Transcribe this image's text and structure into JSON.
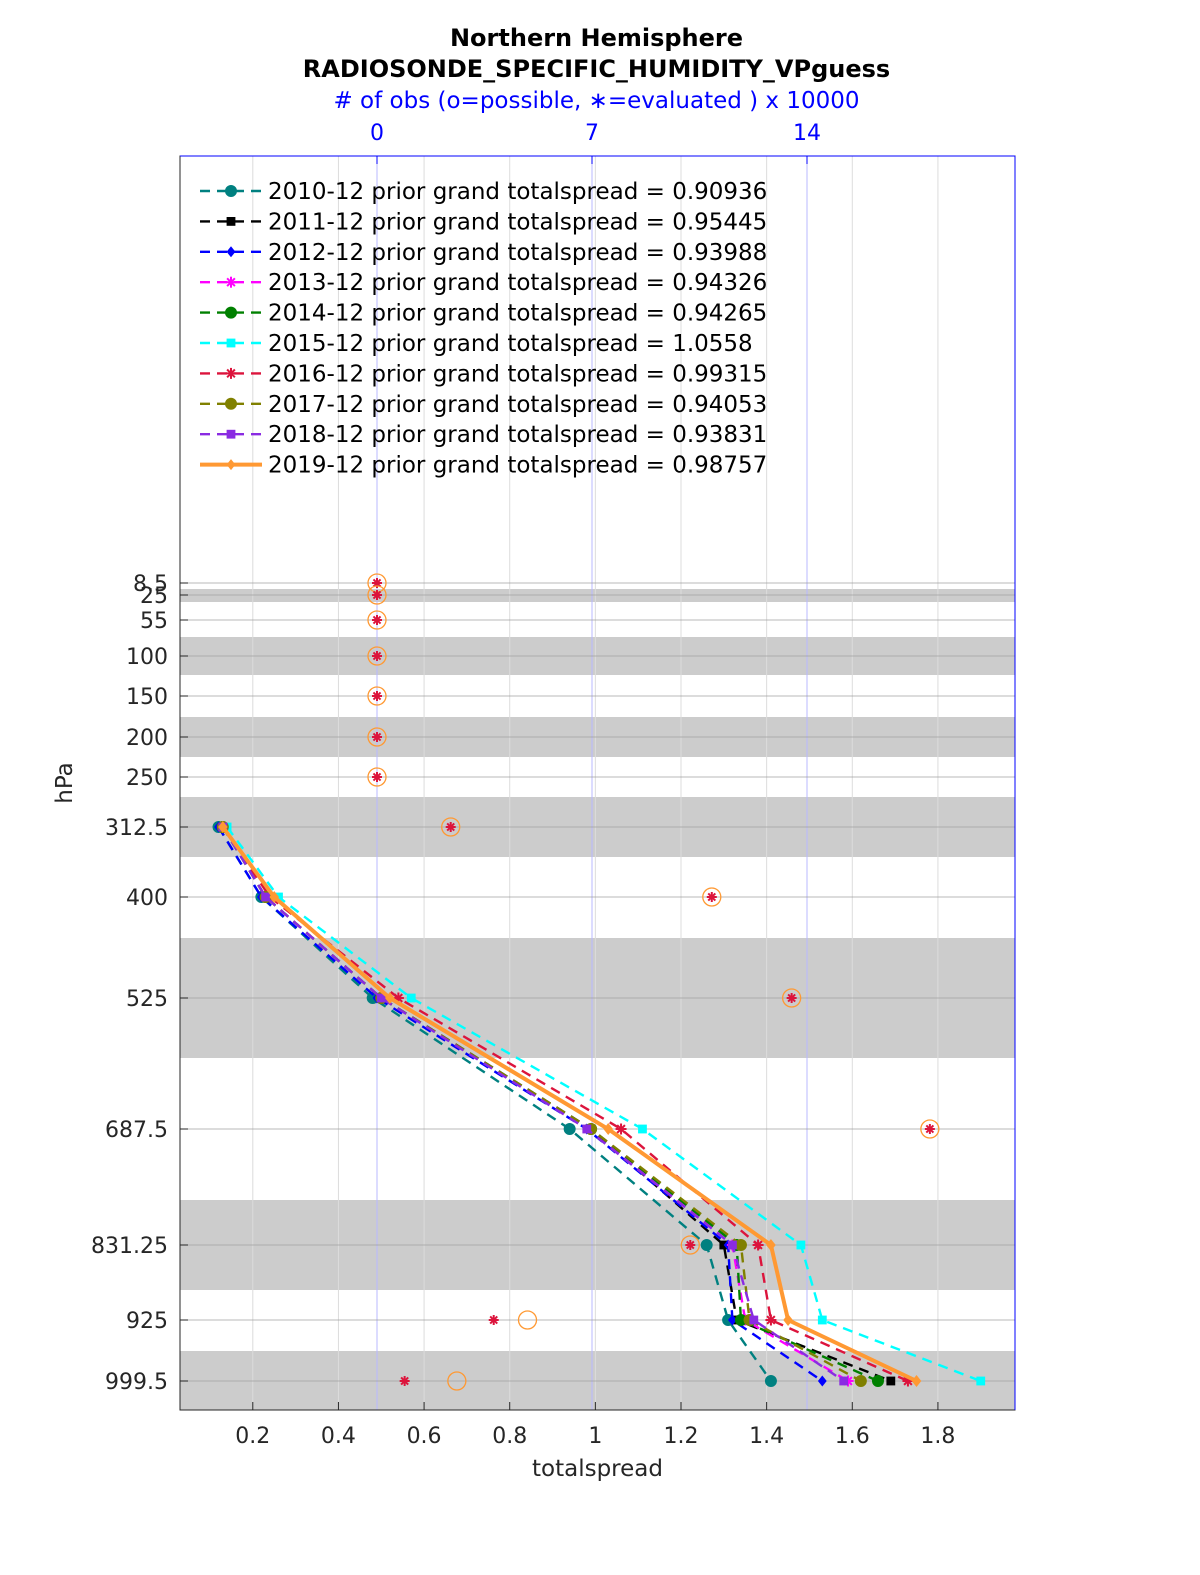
{
  "chart_data": {
    "type": "line",
    "title": "Northern Hemisphere",
    "subtitle": "RADIOSONDE_SPECIFIC_HUMIDITY_VPguess",
    "top_axis_label": "# of obs (o=possible, ∗=evaluated ) x 10000",
    "top_ticks": [
      "0",
      "7",
      "14"
    ],
    "xlabel": "totalspread",
    "ylabel": "hPa",
    "xlim": [
      0.03,
      1.98
    ],
    "x_ticks": [
      "0.2",
      "0.4",
      "0.6",
      "0.8",
      "1",
      "1.2",
      "1.4",
      "1.6",
      "1.8"
    ],
    "y_ticks": [
      "8.5",
      "25",
      "55",
      "100",
      "150",
      "200",
      "250",
      "312.5",
      "400",
      "525",
      "687.5",
      "831.25",
      "925",
      "999.5"
    ],
    "y_scale": "pressure levels, top to bottom",
    "grid": true,
    "legend_placement": "top-left inside plot",
    "series": [
      {
        "name": "2010-12 prior grand totalspread = 0.90936",
        "color": "#008080",
        "dash": "dashed",
        "marker": "circle",
        "values": [
          0.12,
          0.22,
          0.48,
          0.94,
          1.26,
          1.31,
          1.41
        ]
      },
      {
        "name": "2011-12 prior grand totalspread = 0.95445",
        "color": "#000000",
        "dash": "dashed",
        "marker": "square",
        "values": [
          0.13,
          0.23,
          0.5,
          0.99,
          1.3,
          1.33,
          1.69
        ]
      },
      {
        "name": "2012-12 prior grand totalspread = 0.93988",
        "color": "#0000ff",
        "dash": "dashed",
        "marker": "diamond",
        "values": [
          0.12,
          0.22,
          0.49,
          0.98,
          1.31,
          1.32,
          1.53
        ]
      },
      {
        "name": "2013-12 prior grand totalspread = 0.94326",
        "color": "#ff00ff",
        "dash": "dashed",
        "marker": "star",
        "values": [
          0.13,
          0.23,
          0.5,
          0.99,
          1.32,
          1.35,
          1.59
        ]
      },
      {
        "name": "2014-12 prior grand totalspread = 0.94265",
        "color": "#008000",
        "dash": "dashed",
        "marker": "hexagon",
        "values": [
          0.13,
          0.23,
          0.5,
          0.99,
          1.33,
          1.34,
          1.66
        ]
      },
      {
        "name": "2015-12 prior grand totalspread = 1.0558",
        "color": "#00ffff",
        "dash": "dashed",
        "marker": "square",
        "values": [
          0.14,
          0.26,
          0.57,
          1.11,
          1.48,
          1.53,
          1.9
        ]
      },
      {
        "name": "2016-12 prior grand totalspread = 0.99315",
        "color": "#dc143c",
        "dash": "dashed",
        "marker": "asterisk",
        "values": [
          0.13,
          0.24,
          0.54,
          1.06,
          1.38,
          1.41,
          1.73
        ]
      },
      {
        "name": "2017-12 prior grand totalspread = 0.94053",
        "color": "#808000",
        "dash": "dashed",
        "marker": "circle",
        "values": [
          0.13,
          0.23,
          0.5,
          0.99,
          1.34,
          1.36,
          1.62
        ]
      },
      {
        "name": "2018-12 prior grand totalspread = 0.93831",
        "color": "#8a2be2",
        "dash": "dashed",
        "marker": "square",
        "values": [
          0.13,
          0.23,
          0.5,
          0.98,
          1.32,
          1.37,
          1.58
        ]
      },
      {
        "name": "2019-12 prior grand totalspread = 0.98757",
        "color": "#ff9933",
        "dash": "solid",
        "marker": "diamond",
        "values": [
          0.13,
          0.25,
          0.52,
          1.03,
          1.41,
          1.45,
          1.75
        ]
      }
    ],
    "obs_count_x10000": {
      "levels": [
        "8.5",
        "25",
        "55",
        "100",
        "150",
        "200",
        "250",
        "312.5",
        "400",
        "525",
        "687.5",
        "831.25",
        "925",
        "999.5"
      ],
      "possible": [
        0,
        0,
        0,
        0,
        0,
        0,
        0,
        2.4,
        10.9,
        13.5,
        18.0,
        10.2,
        4.9,
        2.6
      ],
      "evaluated": [
        0,
        0,
        0,
        0,
        0,
        0,
        0,
        2.4,
        10.9,
        13.5,
        18.0,
        10.2,
        3.8,
        0.9
      ]
    }
  }
}
